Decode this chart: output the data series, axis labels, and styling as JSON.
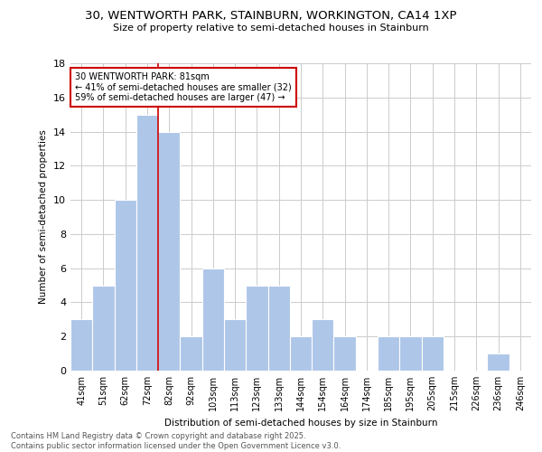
{
  "title_line1": "30, WENTWORTH PARK, STAINBURN, WORKINGTON, CA14 1XP",
  "title_line2": "Size of property relative to semi-detached houses in Stainburn",
  "xlabel": "Distribution of semi-detached houses by size in Stainburn",
  "ylabel": "Number of semi-detached properties",
  "bar_color": "#aec6e8",
  "bar_edge_color": "#ffffff",
  "categories": [
    "41sqm",
    "51sqm",
    "62sqm",
    "72sqm",
    "82sqm",
    "92sqm",
    "103sqm",
    "113sqm",
    "123sqm",
    "133sqm",
    "144sqm",
    "154sqm",
    "164sqm",
    "174sqm",
    "185sqm",
    "195sqm",
    "205sqm",
    "215sqm",
    "226sqm",
    "236sqm",
    "246sqm"
  ],
  "values": [
    3,
    5,
    10,
    15,
    14,
    2,
    6,
    3,
    5,
    5,
    2,
    3,
    2,
    0,
    2,
    2,
    2,
    0,
    0,
    1,
    0
  ],
  "ylim": [
    0,
    18
  ],
  "yticks": [
    0,
    2,
    4,
    6,
    8,
    10,
    12,
    14,
    16,
    18
  ],
  "annotation_text_line1": "30 WENTWORTH PARK: 81sqm",
  "annotation_text_line2": "← 41% of semi-detached houses are smaller (32)",
  "annotation_text_line3": "59% of semi-detached houses are larger (47) →",
  "red_line_color": "#cc0000",
  "annotation_box_color": "#ffffff",
  "annotation_box_edge_color": "#cc0000",
  "footer_line1": "Contains HM Land Registry data © Crown copyright and database right 2025.",
  "footer_line2": "Contains public sector information licensed under the Open Government Licence v3.0.",
  "background_color": "#ffffff",
  "grid_color": "#cccccc"
}
